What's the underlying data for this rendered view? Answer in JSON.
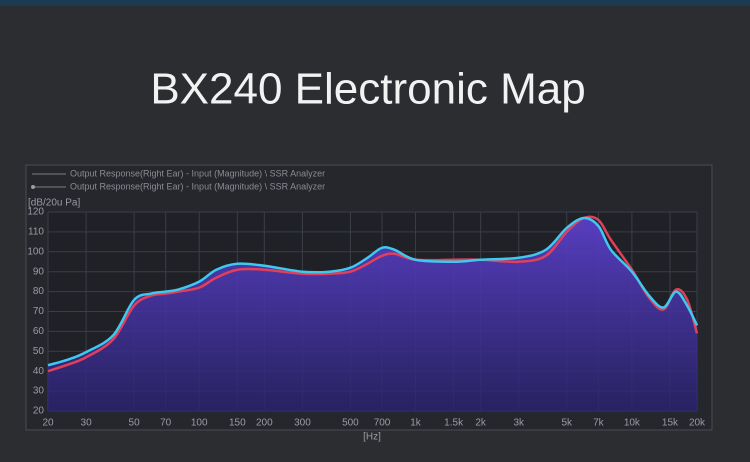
{
  "chart_data": {
    "type": "line",
    "title": "BX240 Electronic Map",
    "y_label": "[dB/20u Pa]",
    "x_label": "[Hz]",
    "x_scale": "log",
    "grid": true,
    "area_fill": true,
    "legend_position": "top-left",
    "x": [
      20,
      25,
      30,
      40,
      50,
      60,
      70,
      80,
      100,
      120,
      150,
      200,
      300,
      400,
      500,
      600,
      700,
      800,
      1000,
      1500,
      2000,
      3000,
      4000,
      5000,
      6000,
      7000,
      8000,
      10000,
      12000,
      14000,
      16000,
      18000,
      20000
    ],
    "series": [
      {
        "name": "Output Response(Right Ear) - Input (Magnitude) \\ SSR Analyzer",
        "color": "#3ec9f0",
        "values": [
          43,
          46,
          49.6,
          58,
          75.8,
          79,
          80,
          81,
          85,
          91,
          94,
          93,
          90,
          90,
          92,
          97,
          102,
          101,
          96,
          95,
          96,
          97,
          101,
          112,
          117,
          113,
          101,
          90,
          78,
          72,
          80,
          73,
          63
        ]
      },
      {
        "name": "Output Response(Right Ear) - Input (Magnitude) \\ SSR Analyzer",
        "color": "#e0405a",
        "values": [
          40,
          43.5,
          47,
          56,
          73,
          78,
          79,
          80,
          82,
          87,
          91,
          91,
          89,
          89,
          90,
          94,
          98,
          99,
          96,
          96,
          96,
          95,
          98,
          110,
          117,
          116,
          106,
          91,
          77,
          71,
          81,
          76,
          59
        ]
      }
    ],
    "xlim": [
      20,
      20000
    ],
    "ylim": [
      20,
      120
    ],
    "xticks": [
      20,
      30,
      50,
      70,
      100,
      150,
      200,
      300,
      500,
      700,
      {
        "value": 1000,
        "label": "1k"
      },
      {
        "value": 1500,
        "label": "1.5k"
      },
      {
        "value": 2000,
        "label": "2k"
      },
      {
        "value": 3000,
        "label": "3k"
      },
      {
        "value": 5000,
        "label": "5k"
      },
      {
        "value": 7000,
        "label": "7k"
      },
      {
        "value": 10000,
        "label": "10k"
      },
      {
        "value": 15000,
        "label": "15k"
      },
      {
        "value": 20000,
        "label": "20k"
      }
    ],
    "yticks": [
      20,
      30,
      40,
      50,
      60,
      70,
      80,
      90,
      100,
      110,
      120
    ]
  }
}
